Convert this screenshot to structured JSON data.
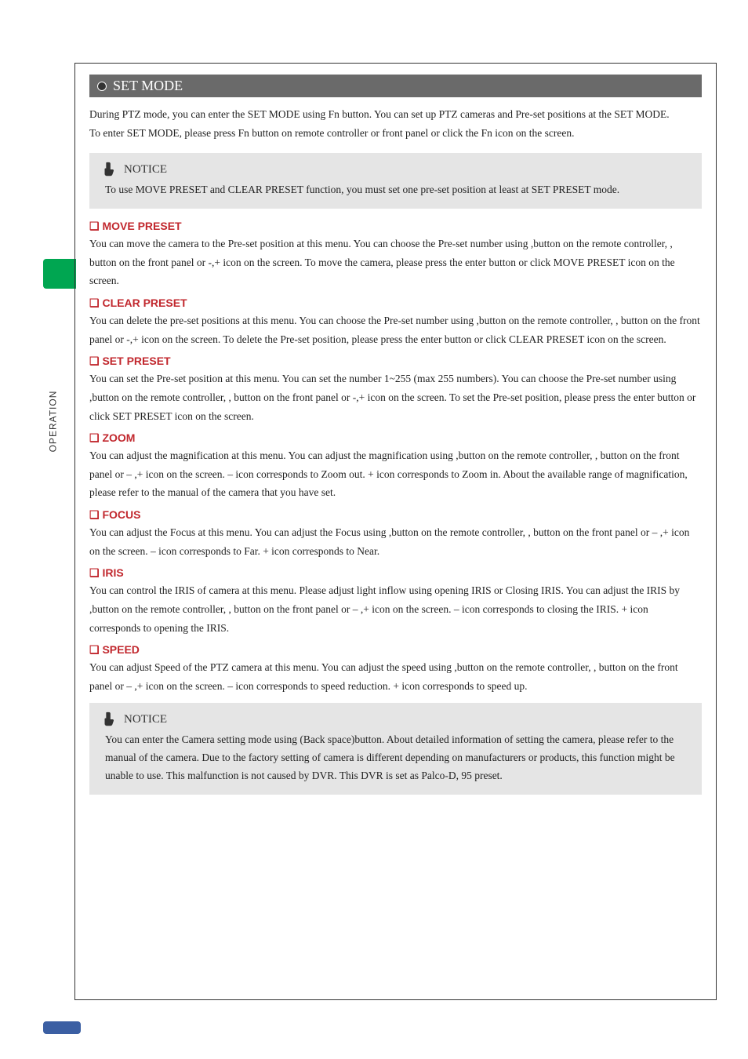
{
  "sidebar_label": "OPERATION",
  "header": {
    "title": "SET MODE"
  },
  "intro": "During PTZ mode, you can enter the SET MODE using Fn button. You can set up PTZ cameras and Pre-set positions at the SET MODE.\nTo enter SET MODE, please press Fn button on remote controller or front panel or click the Fn icon on the screen.",
  "notice_top": {
    "title": "NOTICE",
    "body": "To use MOVE PRESET and CLEAR PRESET function, you must set one pre-set position at least at SET PRESET mode."
  },
  "sections": [
    {
      "title": "MOVE PRESET",
      "body": "You can move the camera to the Pre-set position at this menu. You can choose the Pre-set number using ,button on the remote controller,        , button on the front panel or -,+ icon on the screen. To move the camera, please press the enter button or click MOVE PRESET icon on the screen."
    },
    {
      "title": "CLEAR PRESET",
      "body": "You can delete the pre-set positions at this menu. You can choose the Pre-set number using ,button on the remote controller, , button on the front panel or -,+ icon on the screen. To delete the Pre-set position, please press the enter button or click CLEAR PRESET icon on the screen."
    },
    {
      "title": "SET PRESET",
      "body": "You can set the Pre-set position at this menu. You can set the number 1~255 (max 255 numbers). You can choose the Pre-set number using ,button on the remote controller,         , button on the front panel or -,+ icon on the screen. To set the Pre-set position, please press the enter button or click SET PRESET icon on the screen."
    },
    {
      "title": "ZOOM",
      "body": "You can adjust the magnification at this menu. You can adjust the magnification using ,button on the remote controller, , button on the front panel or – ,+ icon on the screen. – icon corresponds to Zoom out. + icon corresponds to Zoom in. About the available range of magnification, please refer to the manual of the camera that you have set."
    },
    {
      "title": "FOCUS",
      "body": "You can adjust the Focus at this menu. You can adjust the Focus using ,button on the remote controller, , button on the front panel or – ,+ icon on the screen. – icon corresponds to Far. + icon corresponds to Near."
    },
    {
      "title": "IRIS",
      "body": "You can control the IRIS of camera at this menu. Please adjust light inflow using opening IRIS or Closing IRIS. You can adjust the IRIS by ,button on the remote controller,         , button on the front panel or – ,+ icon on the screen. – icon corresponds to closing the IRIS. + icon corresponds to opening the IRIS."
    },
    {
      "title": "SPEED",
      "body": "You can adjust Speed of the PTZ camera at this menu. You can adjust the speed using ,button on the remote controller, , button on the front panel or – ,+ icon on the screen. – icon corresponds to speed reduction. + icon corresponds to speed up."
    }
  ],
  "notice_bottom": {
    "title": "NOTICE",
    "body": "You can enter the Camera setting mode using (Back space)button. About detailed information of setting the camera, please refer to the manual of the camera. Due to the factory setting of camera is different depending on manufacturers or products, this function might be unable to use. This malfunction is not caused by DVR. This DVR is set as Palco-D, 95 preset."
  },
  "colors": {
    "header_bg": "#6a6a6a",
    "section_title_color": "#c1272d",
    "notice_bg": "#e5e5e5",
    "green_tab": "#00a651",
    "blue_tab": "#3b5fa3",
    "text": "#222222"
  }
}
